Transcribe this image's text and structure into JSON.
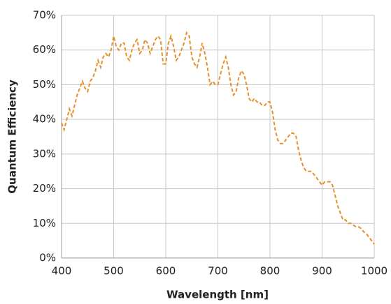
{
  "chart_data": {
    "type": "line",
    "x_label": "Wavelength [nm]",
    "y_label": "Quantum Efficiency",
    "x": [
      400,
      405,
      410,
      415,
      420,
      425,
      430,
      435,
      440,
      445,
      450,
      455,
      460,
      465,
      470,
      475,
      480,
      485,
      490,
      495,
      500,
      505,
      510,
      515,
      520,
      525,
      530,
      535,
      540,
      545,
      550,
      555,
      560,
      565,
      570,
      575,
      580,
      585,
      590,
      595,
      600,
      605,
      610,
      615,
      620,
      625,
      630,
      635,
      640,
      645,
      650,
      655,
      660,
      665,
      670,
      675,
      680,
      685,
      690,
      695,
      700,
      705,
      710,
      715,
      720,
      725,
      730,
      735,
      740,
      745,
      750,
      755,
      760,
      765,
      770,
      775,
      780,
      785,
      790,
      795,
      800,
      805,
      810,
      815,
      820,
      825,
      830,
      835,
      840,
      845,
      850,
      855,
      860,
      865,
      870,
      875,
      880,
      885,
      890,
      895,
      900,
      905,
      910,
      915,
      920,
      925,
      930,
      935,
      940,
      945,
      950,
      955,
      960,
      965,
      970,
      975,
      980,
      985,
      990,
      995,
      1000
    ],
    "series": [
      {
        "name": "Quantum Efficiency",
        "color": "#e8902a",
        "values": [
          39,
          37,
          40,
          43,
          41,
          44,
          47,
          49,
          51,
          49,
          48,
          51,
          52,
          54,
          57,
          55,
          58,
          59,
          58,
          60,
          64,
          61,
          60,
          62,
          62,
          58,
          57,
          60,
          62,
          63,
          59,
          60,
          63,
          62,
          59,
          61,
          63,
          64,
          63,
          56,
          56,
          62,
          64,
          61,
          57,
          58,
          60,
          62,
          65,
          64,
          58,
          56,
          55,
          58,
          62,
          59,
          55,
          50,
          51,
          50,
          50,
          53,
          56,
          58,
          55,
          50,
          47,
          48,
          52,
          54,
          53,
          50,
          46,
          45,
          46,
          45,
          45,
          44,
          44,
          45,
          45,
          42,
          37,
          34,
          33,
          33,
          34,
          35,
          36,
          36,
          35,
          31,
          28,
          26,
          25,
          25,
          25,
          24,
          23,
          22,
          21,
          22,
          22,
          22,
          21,
          18,
          15,
          13,
          11,
          11,
          10,
          10,
          9.5,
          9,
          9,
          8.5,
          7.5,
          7,
          6,
          5,
          4
        ]
      }
    ],
    "xlim": [
      400,
      1000
    ],
    "xticks": [
      400,
      500,
      600,
      700,
      800,
      900,
      1000
    ],
    "ylim": [
      0,
      70
    ],
    "yticks": [
      {
        "value": 0,
        "label": "0%"
      },
      {
        "value": 10,
        "label": "10%"
      },
      {
        "value": 20,
        "label": "20%"
      },
      {
        "value": 30,
        "label": "30%"
      },
      {
        "value": 40,
        "label": "40%"
      },
      {
        "value": 50,
        "label": "50%"
      },
      {
        "value": 60,
        "label": "60%"
      },
      {
        "value": 70,
        "label": "70%"
      }
    ],
    "grid": true,
    "line_style": "dashed"
  }
}
